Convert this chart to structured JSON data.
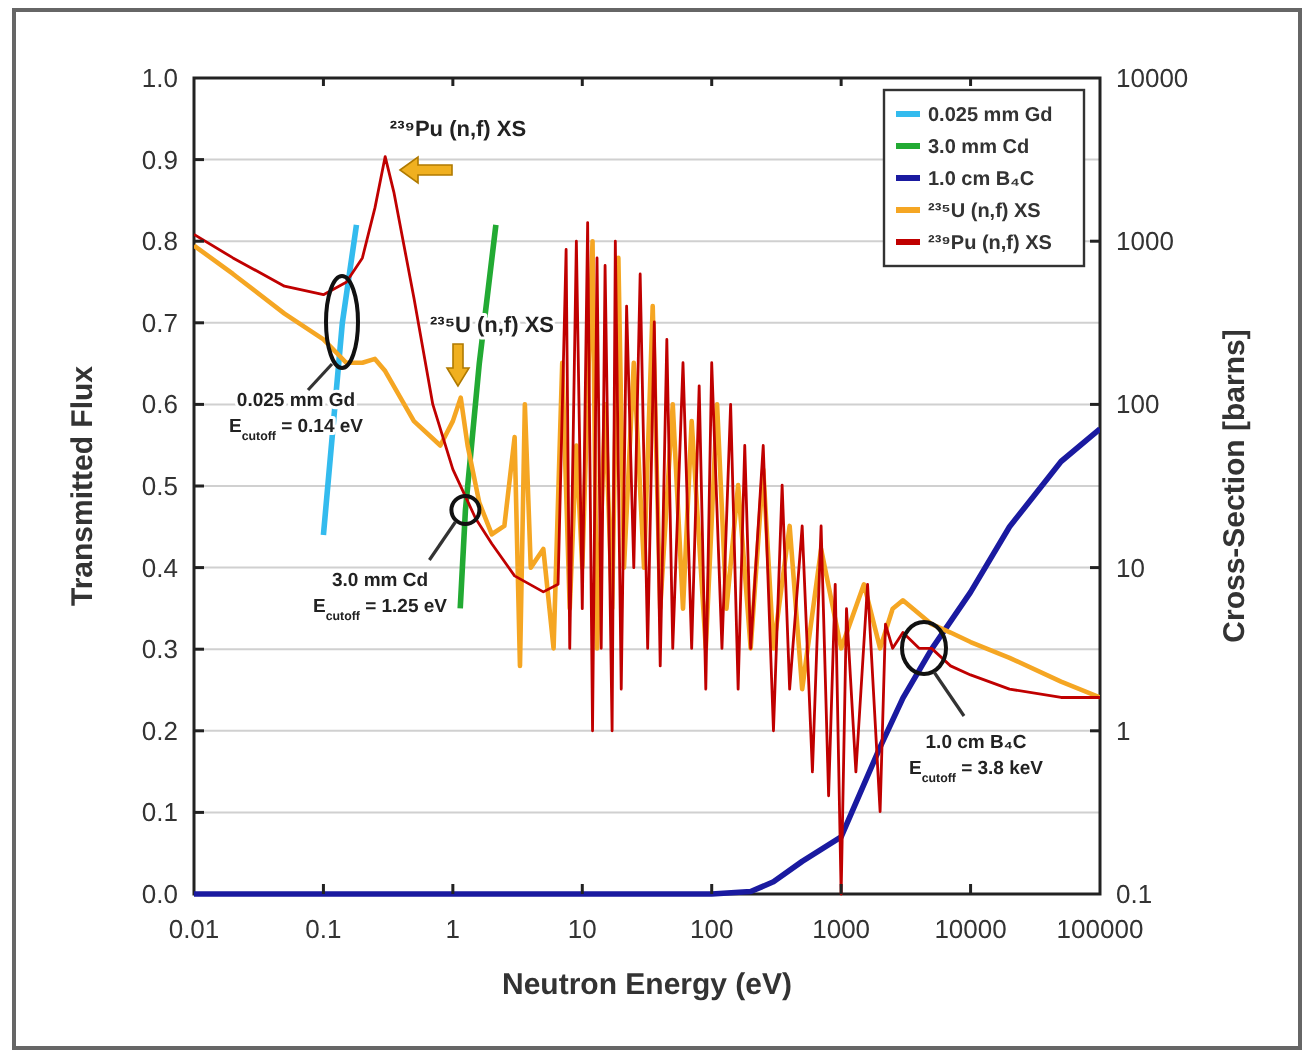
{
  "chart_data": {
    "type": "line",
    "xlabel": "Neutron Energy (eV)",
    "ylabel": "Cross-Section [barns]",
    "y2label": "Transmitted Flux",
    "log": "xy",
    "grid": "y2",
    "legend": "top right",
    "marker": "none",
    "line_style": "solid",
    "xlim": [
      0.01,
      100000
    ],
    "xticks": [
      0.01,
      0.1,
      1,
      10,
      100,
      1000,
      10000,
      100000
    ],
    "ylim": [
      0.1,
      10000
    ],
    "yticks": [
      0.1,
      1,
      10,
      100,
      1000,
      10000
    ],
    "y2lim": [
      0,
      1
    ],
    "y2ticks": [
      {
        "value": 0,
        "label": "0.0"
      },
      0.1,
      0.2,
      0.3,
      0.4,
      0.5,
      0.6,
      0.7,
      0.8,
      0.9,
      {
        "value": 1,
        "label": "1.0"
      }
    ],
    "series": [
      {
        "name": "0.025 mm Gd",
        "color": "#33bbee",
        "axis": "y2",
        "x": [
          0.1,
          0.14,
          0.18
        ],
        "values": [
          0.44,
          0.7,
          0.82
        ]
      },
      {
        "name": "3.0 mm Cd",
        "color": "#22aa33",
        "axis": "y2",
        "x": [
          1.14,
          1.25,
          1.6,
          2.15
        ],
        "values": [
          0.35,
          0.47,
          0.65,
          0.82
        ]
      },
      {
        "name": "1.0 cm B₄C",
        "color": "#1a1aa0",
        "axis": "y2",
        "x": [
          0.01,
          100,
          200,
          300,
          500,
          1000,
          2000,
          3000,
          5000,
          10000,
          20000,
          50000,
          100000
        ],
        "values": [
          0,
          0,
          0.003,
          0.015,
          0.04,
          0.07,
          0.18,
          0.24,
          0.3,
          0.37,
          0.45,
          0.53,
          0.57
        ]
      },
      {
        "name": "²³⁵U (n,f) XS",
        "color": "#f5a623",
        "x": [
          0.01,
          0.02,
          0.05,
          0.1,
          0.15,
          0.2,
          0.25,
          0.3,
          0.5,
          0.8,
          1,
          1.15,
          1.3,
          1.6,
          2,
          2.5,
          3,
          3.3,
          3.6,
          4,
          5,
          6,
          7,
          8,
          9,
          10,
          12,
          13,
          15,
          17,
          19,
          21,
          25,
          30,
          35,
          40,
          50,
          60,
          70,
          90,
          110,
          130,
          160,
          200,
          250,
          300,
          400,
          500,
          700,
          1000,
          1500,
          2000,
          2500,
          3000,
          5000,
          7000,
          10000,
          20000,
          50000,
          100000
        ],
        "values": [
          940,
          630,
          360,
          250,
          180,
          180,
          190,
          160,
          79,
          56,
          79,
          110,
          56,
          25,
          16,
          18,
          63,
          2.5,
          100,
          10,
          13,
          3.2,
          180,
          5.6,
          56,
          10,
          1000,
          3.2,
          100,
          5.6,
          790,
          10,
          180,
          10,
          400,
          5.6,
          100,
          5.6,
          79,
          3.2,
          100,
          5.6,
          32,
          3.2,
          40,
          3.2,
          18,
          1.8,
          13,
          3.2,
          7.9,
          3.2,
          5.6,
          6.3,
          4.5,
          4.0,
          3.5,
          2.8,
          2.0,
          1.6
        ]
      },
      {
        "name": "²³⁹Pu (n,f) XS",
        "color": "#c00000",
        "x": [
          0.01,
          0.02,
          0.05,
          0.1,
          0.15,
          0.2,
          0.25,
          0.3,
          0.35,
          0.5,
          0.7,
          1,
          1.5,
          2,
          3,
          5,
          6.5,
          7.5,
          8,
          9,
          10,
          11,
          12,
          13,
          14,
          15,
          17,
          18,
          20,
          22,
          25,
          28,
          32,
          36,
          40,
          45,
          50,
          60,
          70,
          80,
          90,
          100,
          120,
          140,
          160,
          180,
          200,
          250,
          300,
          350,
          400,
          500,
          600,
          700,
          800,
          900,
          1000,
          1100,
          1300,
          1600,
          2000,
          2200,
          2500,
          3000,
          4000,
          5000,
          7000,
          10000,
          20000,
          50000,
          100000
        ],
        "values": [
          1100,
          790,
          530,
          470,
          560,
          790,
          1600,
          3300,
          2000,
          450,
          100,
          40,
          20,
          14,
          8.9,
          7.1,
          7.9,
          890,
          3.2,
          1000,
          5.6,
          1300,
          1,
          790,
          3.2,
          710,
          1,
          1000,
          1.8,
          400,
          10,
          630,
          3.2,
          320,
          2.5,
          250,
          3.2,
          180,
          3.2,
          130,
          1.8,
          180,
          3.2,
          100,
          1.8,
          56,
          3.2,
          56,
          1,
          32,
          1.8,
          18,
          0.56,
          18,
          0.4,
          7.9,
          0.1,
          5.6,
          0.56,
          7.9,
          0.32,
          4.5,
          3.2,
          4,
          3.2,
          3.2,
          2.5,
          2.2,
          1.8,
          1.6,
          1.6
        ]
      }
    ],
    "annotations": [
      "²³⁹Pu (n,f) XS",
      "²³⁵U (n,f) XS",
      "0.025 mm Gd\nE$_{cutoff}$ = 0.14 eV",
      "3.0 mm Cd\nE$_{cutoff}$ = 1.25 eV",
      "1.0 cm B₄C\nE$_{cutoff}$ = 3.8 keV"
    ]
  }
}
